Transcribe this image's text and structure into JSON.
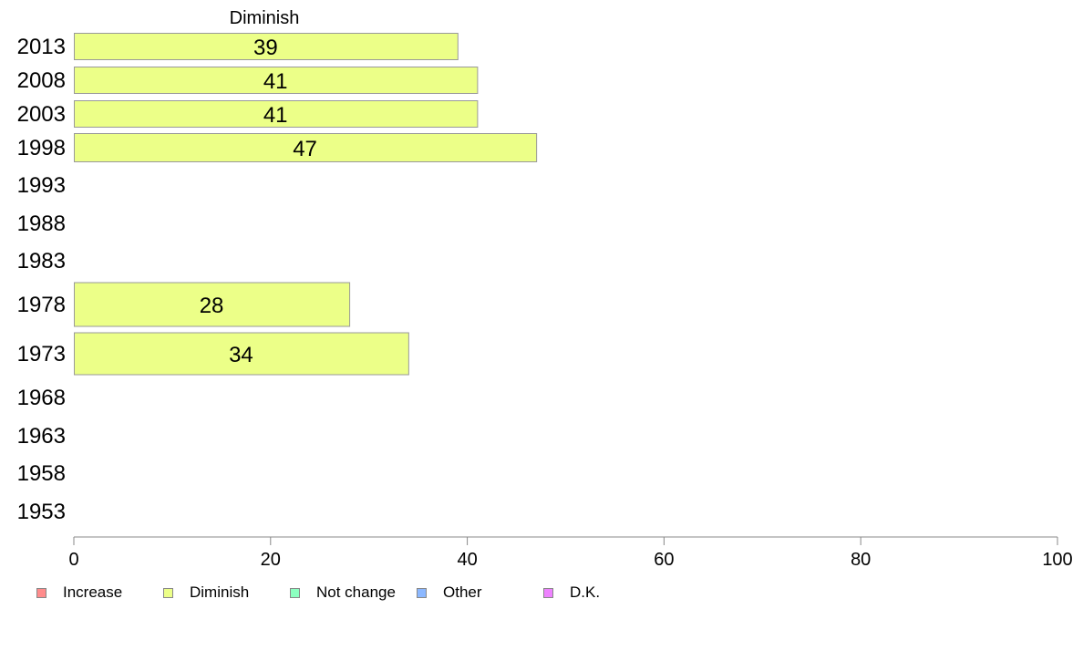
{
  "chart_data": {
    "type": "bar",
    "orientation": "horizontal",
    "title": "Diminish",
    "categories": [
      "2013",
      "2008",
      "2003",
      "1998",
      "1993",
      "1988",
      "1983",
      "1978",
      "1973",
      "1968",
      "1963",
      "1958",
      "1953"
    ],
    "series": [
      {
        "name": "Diminish",
        "color": "#ecff88",
        "values": [
          39,
          41,
          41,
          47,
          null,
          null,
          null,
          28,
          34,
          null,
          null,
          null,
          null
        ]
      }
    ],
    "data_labels": [
      "39",
      "41",
      "41",
      "47",
      "",
      "",
      "",
      "28",
      "34",
      "",
      "",
      "",
      ""
    ],
    "xlim": [
      0,
      100
    ],
    "xticks": [
      "0",
      "20",
      "40",
      "60",
      "80",
      "100"
    ],
    "grid": false,
    "legend": {
      "position": "bottom",
      "items": [
        {
          "label": "Increase",
          "color": "#ff8c8c"
        },
        {
          "label": "Diminish",
          "color": "#ecff88"
        },
        {
          "label": "Not change",
          "color": "#8cffc0"
        },
        {
          "label": "Other",
          "color": "#8cb8ff"
        },
        {
          "label": "D.K.",
          "color": "#ee82ff"
        }
      ]
    }
  }
}
